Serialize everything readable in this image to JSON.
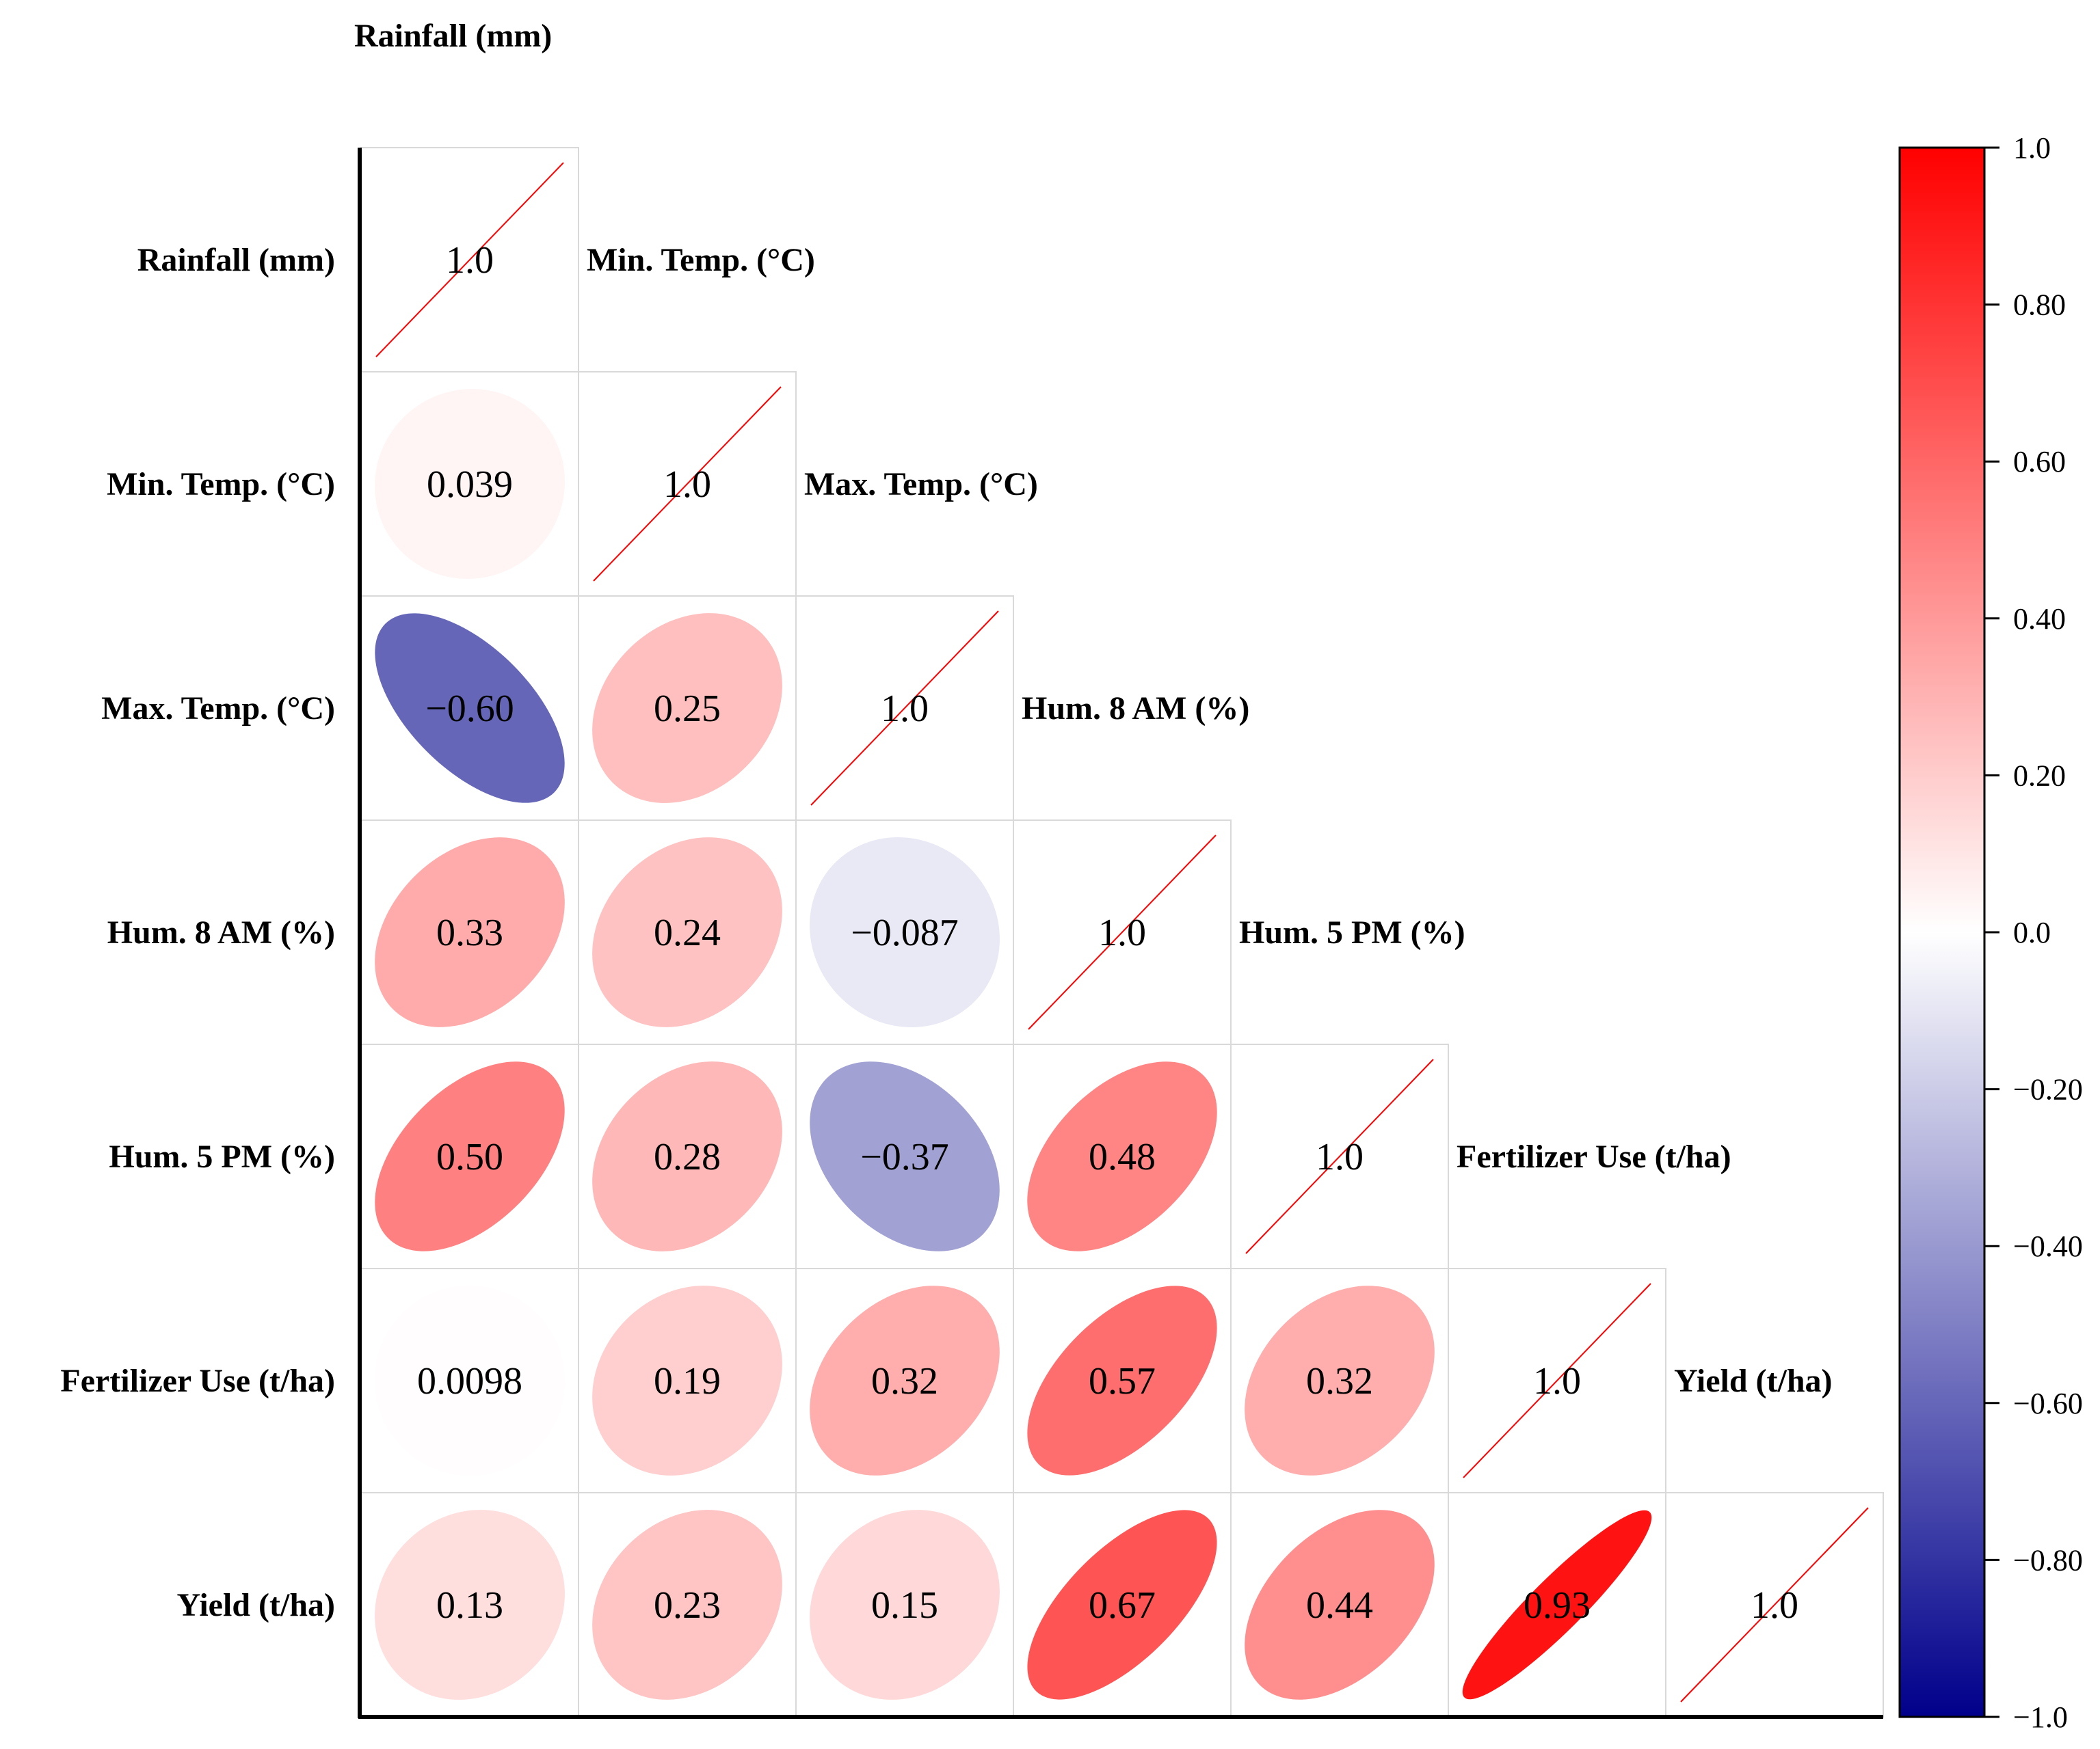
{
  "chart_data": {
    "type": "heatmap",
    "subtype": "lower-triangle correlation matrix with ellipses",
    "variables": [
      "Rainfall (mm)",
      "Min. Temp. (°C)",
      "Max. Temp. (°C)",
      "Hum. 8 AM (%)",
      "Hum. 5 PM (%)",
      "Fertilizer Use (t/ha)",
      "Yield (t/ha)"
    ],
    "matrix": [
      [
        1.0
      ],
      [
        0.039,
        1.0
      ],
      [
        -0.6,
        0.25,
        1.0
      ],
      [
        0.33,
        0.24,
        -0.087,
        1.0
      ],
      [
        0.5,
        0.28,
        -0.37,
        0.48,
        1.0
      ],
      [
        0.0098,
        0.19,
        0.32,
        0.57,
        0.32,
        1.0
      ],
      [
        0.13,
        0.23,
        0.15,
        0.67,
        0.44,
        0.93,
        1.0
      ]
    ],
    "labels": [
      [
        "1.0"
      ],
      [
        "0.039",
        "1.0"
      ],
      [
        "−0.60",
        "0.25",
        "1.0"
      ],
      [
        "0.33",
        "0.24",
        "−0.087",
        "1.0"
      ],
      [
        "0.50",
        "0.28",
        "−0.37",
        "0.48",
        "1.0"
      ],
      [
        "0.0098",
        "0.19",
        "0.32",
        "0.57",
        "0.32",
        "1.0"
      ],
      [
        "0.13",
        "0.23",
        "0.15",
        "0.67",
        "0.44",
        "0.93",
        "1.0"
      ]
    ],
    "colorbar": {
      "range": [
        -1.0,
        1.0
      ],
      "ticks": [
        1.0,
        0.8,
        0.6,
        0.4,
        0.2,
        0.0,
        -0.2,
        -0.4,
        -0.6,
        -0.8,
        -1.0
      ],
      "tick_labels": [
        "1.0",
        "0.80",
        "0.60",
        "0.40",
        "0.20",
        "0.0",
        "−0.20",
        "−0.40",
        "−0.60",
        "−0.80",
        "−1.0"
      ],
      "colors": {
        "negative": "#00008b",
        "zero": "#ffffff",
        "positive": "#ff0000"
      }
    },
    "diagonal_line_color": "#ff0000",
    "grid_color": "#d9d9d9"
  }
}
